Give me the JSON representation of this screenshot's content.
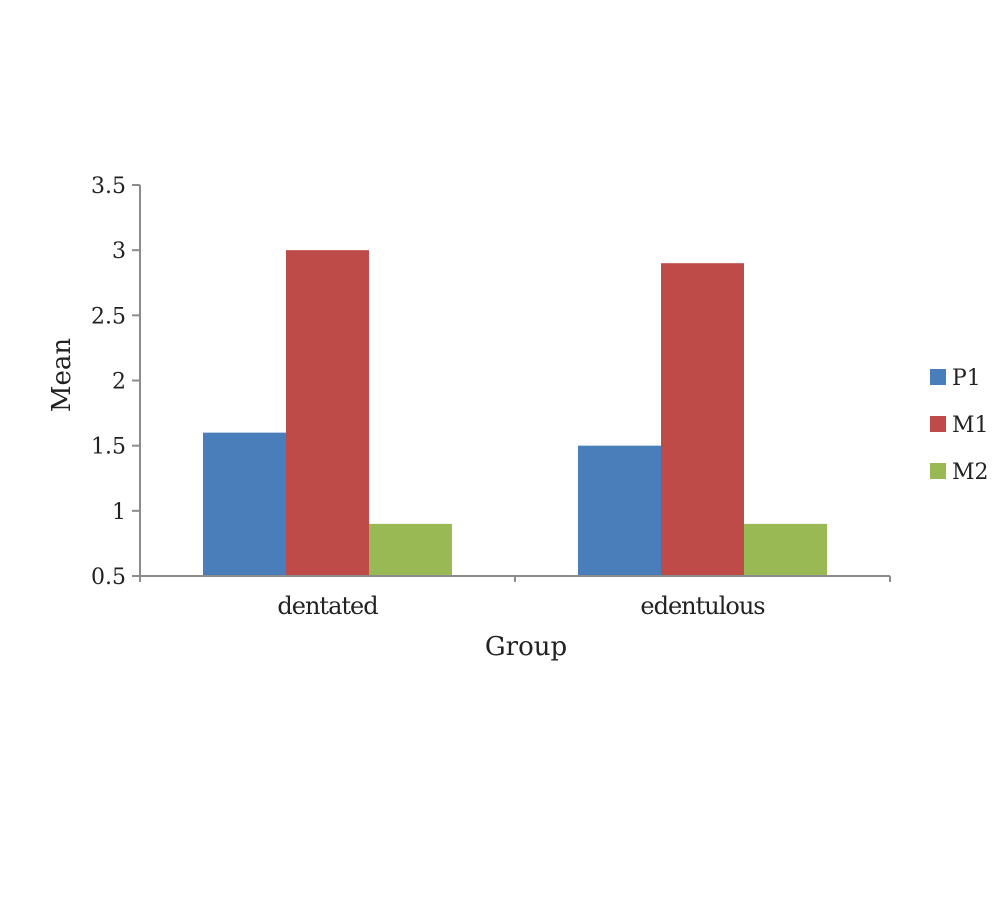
{
  "chart_data": {
    "type": "bar",
    "title": "",
    "xlabel": "Group",
    "ylabel": "Mean",
    "categories": [
      "dentated",
      "edentulous"
    ],
    "series": [
      {
        "name": "P1",
        "color": "#4a7ebb",
        "values": [
          1.6,
          1.5
        ]
      },
      {
        "name": "M1",
        "color": "#be4b48",
        "values": [
          3.0,
          2.9
        ]
      },
      {
        "name": "M2",
        "color": "#98b954",
        "values": [
          0.9,
          0.9
        ]
      }
    ],
    "ylim": [
      0.5,
      3.5
    ],
    "yticks": [
      "0.5",
      "1",
      "1.5",
      "2",
      "2.5",
      "3",
      "3.5"
    ],
    "grid": false,
    "legend": "right"
  }
}
